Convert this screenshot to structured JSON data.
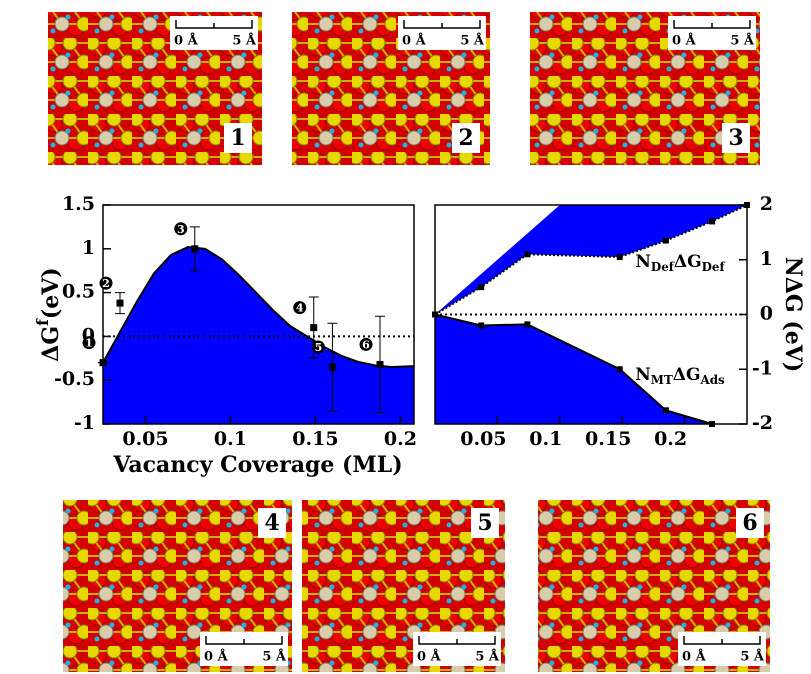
{
  "chart_data": [
    {
      "type": "errorbar_fit",
      "ylabel": [
        "ΔG",
        "f",
        "(eV)"
      ],
      "xlabel": "Vacancy Coverage (ML)",
      "xlim": [
        0.025,
        0.208
      ],
      "xticks": [
        0.05,
        0.1,
        0.15,
        0.2
      ],
      "ylim": [
        -1,
        1.5
      ],
      "yticks": [
        -1,
        -0.5,
        0,
        0.5,
        1,
        1.5
      ],
      "fill_color": "#0000ff",
      "fit": {
        "x": [
          0.025,
          0.035,
          0.045,
          0.055,
          0.065,
          0.075,
          0.085,
          0.095,
          0.105,
          0.115,
          0.125,
          0.135,
          0.145,
          0.155,
          0.165,
          0.175,
          0.185,
          0.195,
          0.208
        ],
        "values": [
          -0.3,
          0.05,
          0.4,
          0.72,
          0.93,
          1.02,
          1.0,
          0.88,
          0.7,
          0.5,
          0.3,
          0.12,
          0.0,
          -0.12,
          -0.22,
          -0.29,
          -0.33,
          -0.35,
          -0.34
        ]
      },
      "points": {
        "x": [
          0.025,
          0.035,
          0.079,
          0.149,
          0.16,
          0.188
        ],
        "values": [
          -0.3,
          0.38,
          1.0,
          0.1,
          -0.35,
          -0.32
        ],
        "errors": [
          0,
          0.12,
          0.25,
          0.35,
          0.5,
          0.55
        ],
        "labels": [
          "1",
          "2",
          "3",
          "4",
          "5",
          "6"
        ]
      }
    },
    {
      "type": "area_lines",
      "ylabel": "NΔG (eV)",
      "xlim": [
        0,
        0.25
      ],
      "xticks": [
        0.05,
        0.1,
        0.15,
        0.2
      ],
      "ylim": [
        -2,
        2
      ],
      "yticks": [
        -2,
        -1,
        0,
        1,
        2
      ],
      "fill_color": "#0000ff",
      "series": [
        {
          "label": [
            "N",
            "Def",
            "ΔG",
            "Def"
          ],
          "dashed": true,
          "x": [
            0,
            0.037,
            0.074,
            0.148,
            0.185,
            0.222,
            0.25
          ],
          "values": [
            0,
            0.5,
            1.1,
            1.05,
            1.35,
            1.7,
            2.0
          ]
        },
        {
          "label": [
            "N",
            "MT",
            "ΔG",
            "Ads"
          ],
          "dashed": false,
          "x": [
            0,
            0.037,
            0.074,
            0.148,
            0.185,
            0.222
          ],
          "values": [
            0,
            -0.2,
            -0.18,
            -1.0,
            -1.75,
            -2.0
          ]
        }
      ]
    }
  ],
  "panels": [
    {
      "label": "1",
      "scale": [
        "0 Å",
        "5 Å"
      ]
    },
    {
      "label": "2",
      "scale": [
        "0 Å",
        "5 Å"
      ]
    },
    {
      "label": "3",
      "scale": [
        "0 Å",
        "5 Å"
      ]
    },
    {
      "label": "4",
      "scale": [
        "0 Å",
        "5 Å"
      ]
    },
    {
      "label": "5",
      "scale": [
        "0 Å",
        "5 Å"
      ]
    },
    {
      "label": "6",
      "scale": [
        "0 Å",
        "5 Å"
      ]
    }
  ]
}
